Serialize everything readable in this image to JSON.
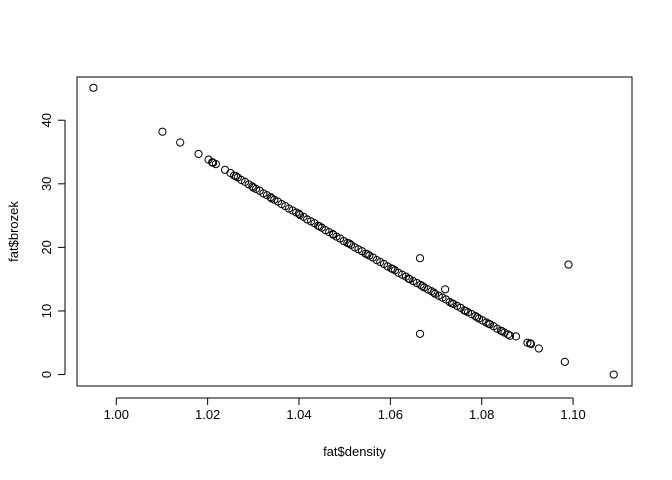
{
  "chart_data": {
    "type": "scatter",
    "title": "",
    "xlabel": "fat$density",
    "ylabel": "fat$brozek",
    "xlim": [
      0.9914,
      1.1129
    ],
    "ylim": [
      -1.8,
      46.8
    ],
    "x_ticks": [
      1.0,
      1.02,
      1.04,
      1.06,
      1.08,
      1.1
    ],
    "x_tick_labels": [
      "1.00",
      "1.02",
      "1.04",
      "1.06",
      "1.08",
      "1.10"
    ],
    "y_ticks": [
      0,
      10,
      20,
      30,
      40
    ],
    "y_tick_labels": [
      "0",
      "10",
      "20",
      "30",
      "40"
    ],
    "grid": false,
    "legend": "none",
    "marker": "open-circle",
    "series": [
      {
        "points": [
          [
            0.995,
            45.1
          ],
          [
            1.0101,
            38.2
          ],
          [
            1.014,
            36.5
          ],
          [
            1.018,
            34.7
          ],
          [
            1.0202,
            33.8
          ],
          [
            1.021,
            33.4
          ],
          [
            1.0218,
            33.1
          ],
          [
            1.0238,
            32.2
          ],
          [
            1.025,
            31.7
          ],
          [
            1.0258,
            31.3
          ],
          [
            1.0266,
            31.0
          ],
          [
            1.0274,
            30.6
          ],
          [
            1.0282,
            30.3
          ],
          [
            1.029,
            29.9
          ],
          [
            1.0298,
            29.6
          ],
          [
            1.0306,
            29.2
          ],
          [
            1.0314,
            28.9
          ],
          [
            1.0322,
            28.5
          ],
          [
            1.033,
            28.2
          ],
          [
            1.0338,
            27.9
          ],
          [
            1.0346,
            27.5
          ],
          [
            1.0354,
            27.2
          ],
          [
            1.0362,
            26.8
          ],
          [
            1.037,
            26.5
          ],
          [
            1.0378,
            26.1
          ],
          [
            1.0386,
            25.8
          ],
          [
            1.0394,
            25.5
          ],
          [
            1.0402,
            25.1
          ],
          [
            1.041,
            24.8
          ],
          [
            1.0418,
            24.4
          ],
          [
            1.0426,
            24.1
          ],
          [
            1.0434,
            23.8
          ],
          [
            1.0442,
            23.4
          ],
          [
            1.045,
            23.1
          ],
          [
            1.0458,
            22.7
          ],
          [
            1.0466,
            22.4
          ],
          [
            1.0474,
            22.1
          ],
          [
            1.0482,
            21.7
          ],
          [
            1.049,
            21.4
          ],
          [
            1.0498,
            21.0
          ],
          [
            1.0506,
            20.7
          ],
          [
            1.0514,
            20.4
          ],
          [
            1.0522,
            20.0
          ],
          [
            1.053,
            19.7
          ],
          [
            1.0538,
            19.4
          ],
          [
            1.0546,
            19.0
          ],
          [
            1.0554,
            18.7
          ],
          [
            1.0562,
            18.4
          ],
          [
            1.057,
            18.0
          ],
          [
            1.0578,
            17.7
          ],
          [
            1.0586,
            17.4
          ],
          [
            1.0594,
            17.0
          ],
          [
            1.0602,
            16.7
          ],
          [
            1.061,
            16.4
          ],
          [
            1.0618,
            16.0
          ],
          [
            1.0626,
            15.7
          ],
          [
            1.0634,
            15.4
          ],
          [
            1.0642,
            15.0
          ],
          [
            1.065,
            14.7
          ],
          [
            1.0658,
            14.4
          ],
          [
            1.0666,
            14.1
          ],
          [
            1.0674,
            13.7
          ],
          [
            1.0682,
            13.4
          ],
          [
            1.069,
            13.1
          ],
          [
            1.0698,
            12.7
          ],
          [
            1.0706,
            12.4
          ],
          [
            1.0714,
            12.1
          ],
          [
            1.0722,
            11.8
          ],
          [
            1.073,
            11.4
          ],
          [
            1.0738,
            11.1
          ],
          [
            1.0746,
            10.8
          ],
          [
            1.0754,
            10.5
          ],
          [
            1.0762,
            10.1
          ],
          [
            1.077,
            9.8
          ],
          [
            1.0778,
            9.5
          ],
          [
            1.0786,
            9.2
          ],
          [
            1.0794,
            8.8
          ],
          [
            1.0802,
            8.5
          ],
          [
            1.081,
            8.2
          ],
          [
            1.0818,
            7.9
          ],
          [
            1.0826,
            7.6
          ],
          [
            1.0834,
            7.2
          ],
          [
            1.0842,
            6.9
          ],
          [
            1.085,
            6.6
          ],
          [
            1.0858,
            6.3
          ],
          [
            1.0875,
            6.0
          ],
          [
            1.09,
            5.0
          ],
          [
            1.0908,
            4.8
          ],
          [
            1.0925,
            4.1
          ],
          [
            1.0665,
            18.3
          ],
          [
            1.0665,
            6.4
          ],
          [
            1.072,
            13.4
          ],
          [
            1.099,
            17.3
          ],
          [
            1.0982,
            2.0
          ],
          [
            1.1089,
            0.0
          ],
          [
            1.03,
            29.4
          ],
          [
            1.034,
            27.7
          ],
          [
            1.04,
            25.3
          ],
          [
            1.0445,
            23.3
          ],
          [
            1.0475,
            22.0
          ],
          [
            1.051,
            20.6
          ],
          [
            1.055,
            18.9
          ],
          [
            1.0605,
            16.6
          ],
          [
            1.064,
            15.1
          ],
          [
            1.067,
            13.9
          ],
          [
            1.0695,
            12.9
          ],
          [
            1.0735,
            11.2
          ],
          [
            1.0765,
            10.0
          ],
          [
            1.079,
            9.0
          ],
          [
            1.0815,
            8.0
          ],
          [
            1.0845,
            6.8
          ],
          [
            1.0862,
            6.1
          ],
          [
            1.0906,
            4.9
          ],
          [
            1.0212,
            33.3
          ],
          [
            1.0262,
            31.2
          ]
        ]
      }
    ]
  }
}
